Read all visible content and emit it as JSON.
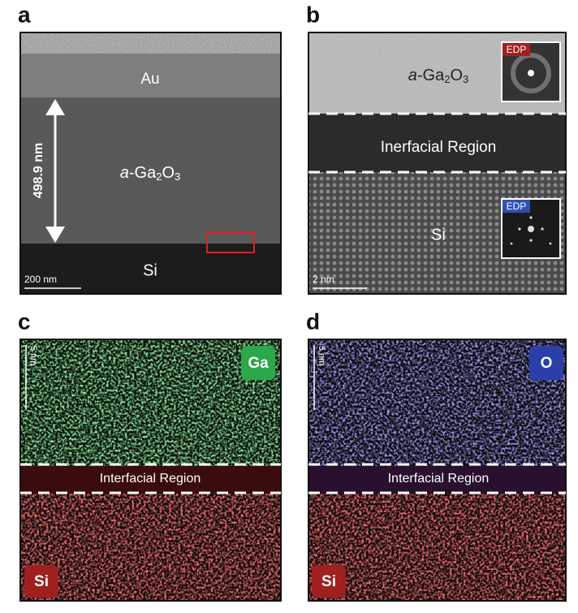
{
  "panel_a": {
    "label": "a",
    "top_layer": "Au",
    "thickness": "498.9 nm",
    "film": {
      "prefix": "a",
      "main": "-Ga",
      "sub1": "2",
      "mid": "O",
      "sub2": "3"
    },
    "substrate": "Si",
    "scale": "200 nm"
  },
  "panel_b": {
    "label": "b",
    "film": {
      "prefix": "a",
      "main": "-Ga",
      "sub1": "2",
      "mid": "O",
      "sub2": "3"
    },
    "edp_top": "EDP",
    "interface": "Inerfacial Region",
    "substrate": "Si",
    "edp_bottom": "EDP",
    "scale": "2 nm"
  },
  "panel_c": {
    "label": "c",
    "scale": "5 nm",
    "element": "Ga",
    "interface": "Interfacial Region",
    "substrate": "Si"
  },
  "panel_d": {
    "label": "d",
    "scale": "5 nm",
    "element": "O",
    "interface": "Interfacial Region",
    "substrate": "Si"
  }
}
